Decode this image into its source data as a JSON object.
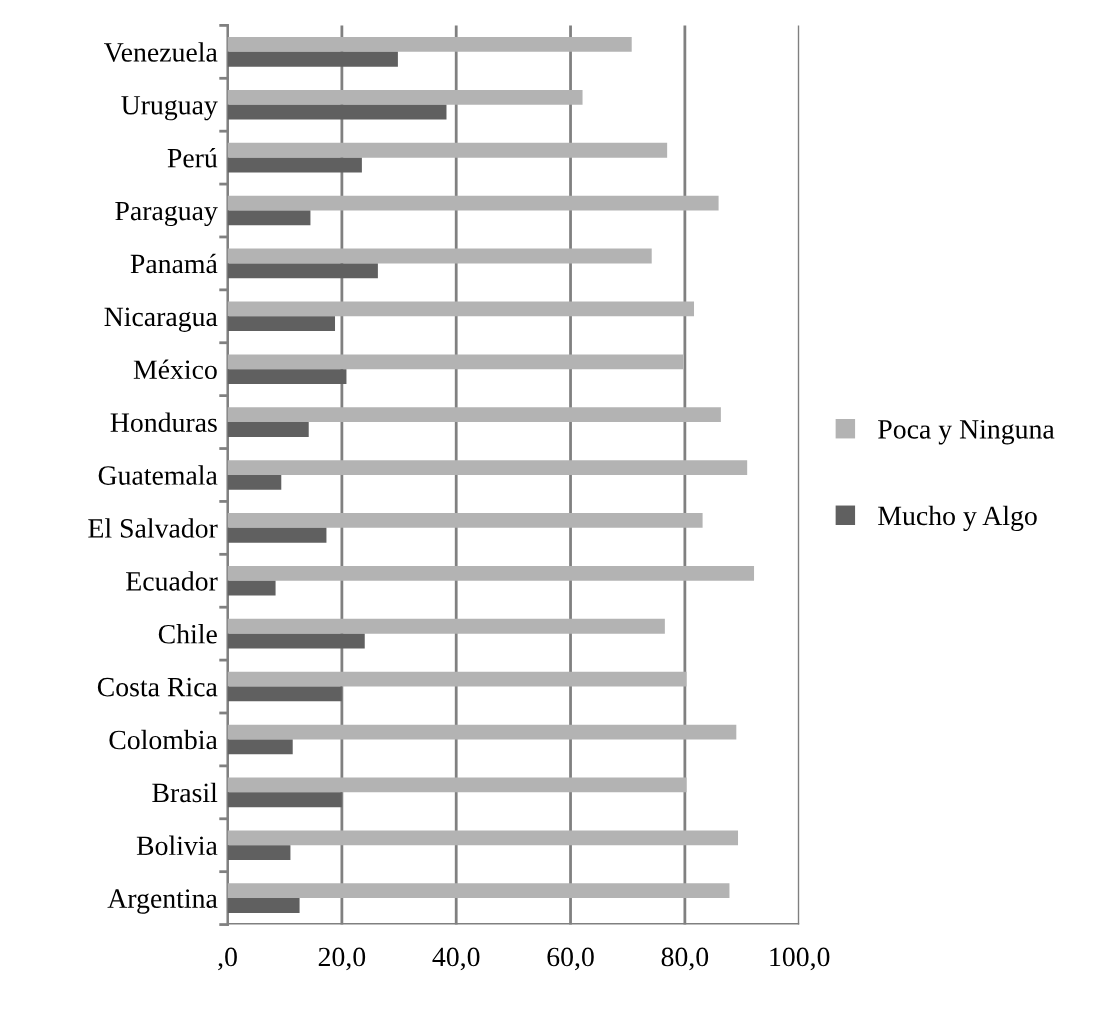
{
  "chart_data": {
    "type": "bar",
    "orientation": "horizontal",
    "categories": [
      "Venezuela",
      "Uruguay",
      "Perú",
      "Paraguay",
      "Panamá",
      "Nicaragua",
      "México",
      "Honduras",
      "Guatemala",
      "El Salvador",
      "Ecuador",
      "Chile",
      "Costa Rica",
      "Colombia",
      "Brasil",
      "Bolivia",
      "Argentina"
    ],
    "series": [
      {
        "name": "Poca y Ninguna",
        "color": "#b3b3b3",
        "values": [
          70.7,
          62.1,
          76.9,
          85.9,
          74.2,
          81.6,
          79.7,
          86.3,
          90.9,
          83.1,
          92.1,
          76.5,
          80.3,
          89.0,
          80.3,
          89.3,
          87.8
        ]
      },
      {
        "name": "Mucho y Algo",
        "color": "#606060",
        "values": [
          29.8,
          38.3,
          23.5,
          14.5,
          26.3,
          18.8,
          20.8,
          14.2,
          9.4,
          17.3,
          8.4,
          24.0,
          20.0,
          11.4,
          20.0,
          11.0,
          12.6
        ]
      }
    ],
    "xlim": [
      0,
      100
    ],
    "xticks": [
      {
        "value": 0,
        "label": ",0"
      },
      {
        "value": 20,
        "label": "20,0"
      },
      {
        "value": 40,
        "label": "40,0"
      },
      {
        "value": 60,
        "label": "60,0"
      },
      {
        "value": 80,
        "label": "80,0"
      },
      {
        "value": 100,
        "label": "100,0"
      }
    ],
    "grid": "x",
    "legend": "right"
  }
}
